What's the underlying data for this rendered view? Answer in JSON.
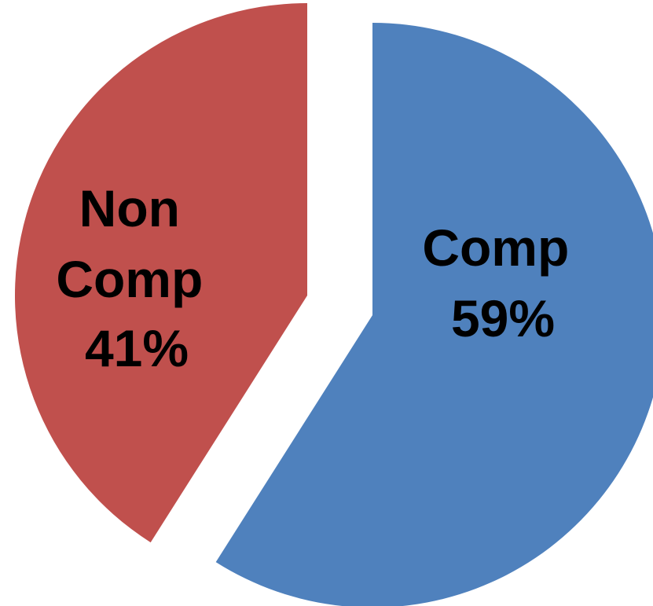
{
  "chart_data": {
    "type": "pie",
    "title": "",
    "legend": "none",
    "slices": [
      {
        "name": "Comp",
        "value": 59,
        "label_lines": [
          "Comp",
          "59%"
        ],
        "color": "#4f81bd"
      },
      {
        "name": "Non Comp",
        "value": 41,
        "label_lines": [
          "Non",
          "Comp",
          "41%"
        ],
        "color": "#c0504d"
      }
    ]
  }
}
